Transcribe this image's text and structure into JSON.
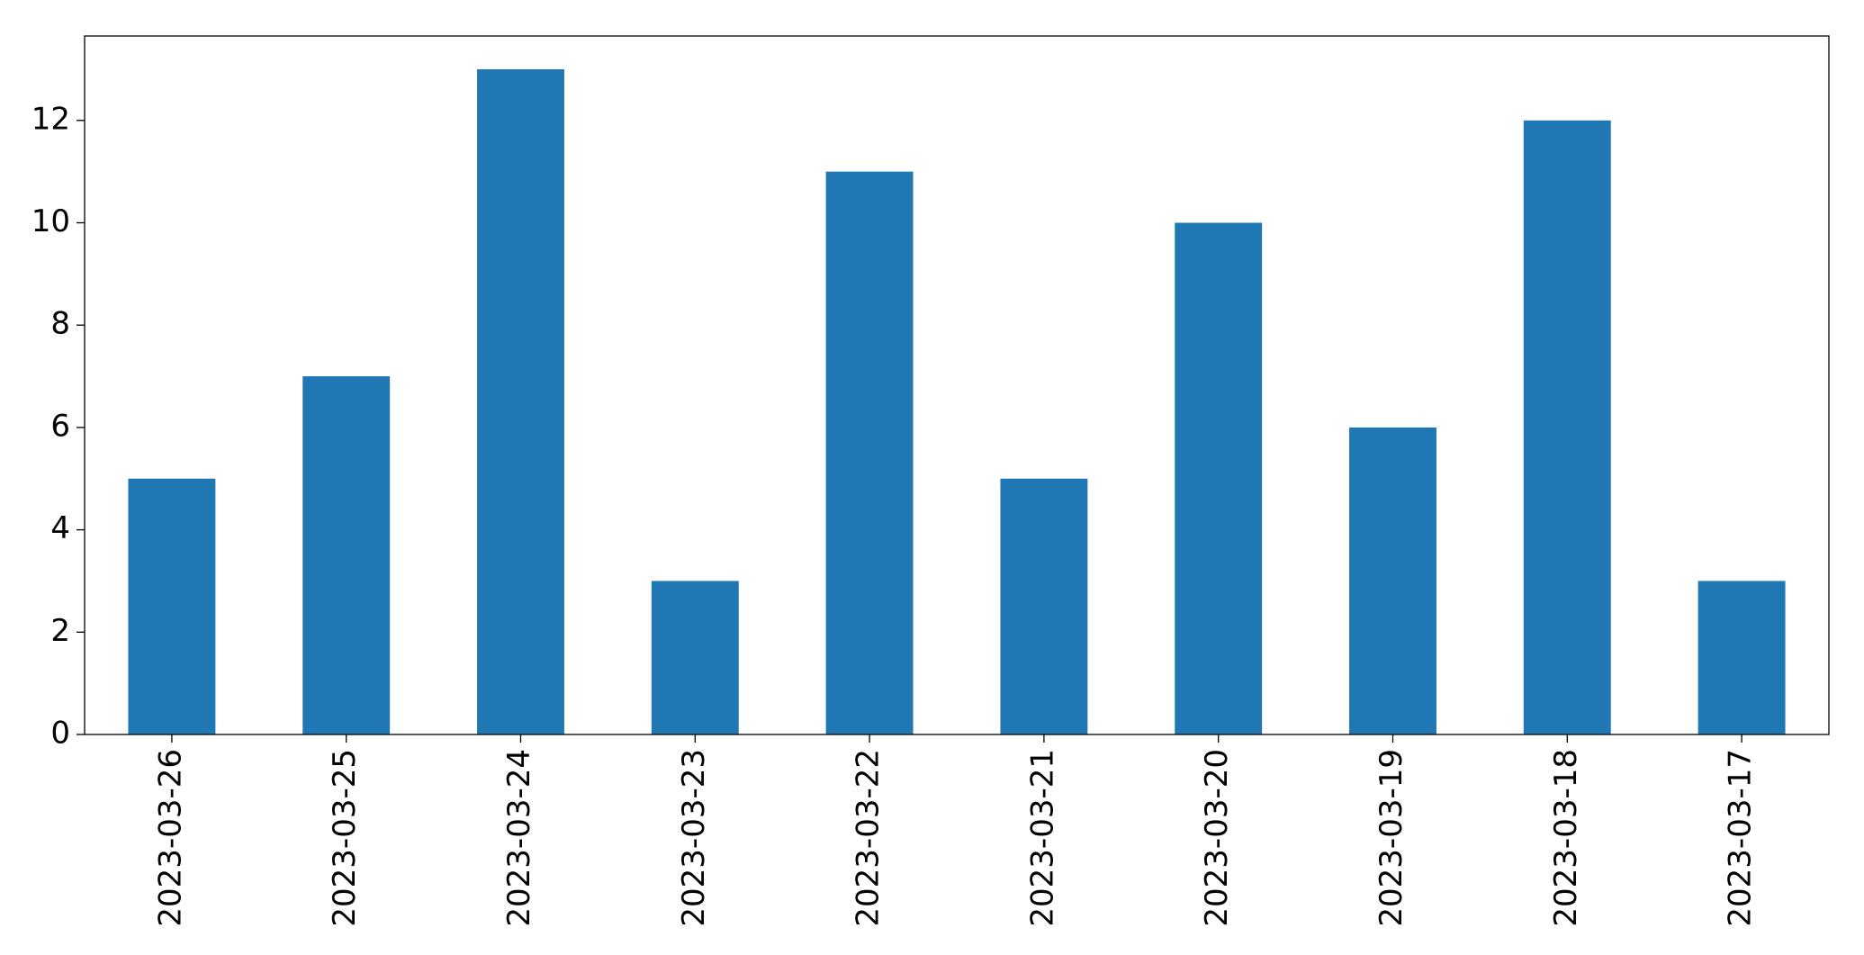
{
  "chart_data": {
    "type": "bar",
    "categories": [
      "2023-03-26",
      "2023-03-25",
      "2023-03-24",
      "2023-03-23",
      "2023-03-22",
      "2023-03-21",
      "2023-03-20",
      "2023-03-19",
      "2023-03-18",
      "2023-03-17"
    ],
    "values": [
      5,
      7,
      13,
      3,
      11,
      5,
      10,
      6,
      12,
      3
    ],
    "color": "#1f77b4",
    "ylim": [
      0,
      13.65
    ],
    "yticks": [
      0,
      2,
      4,
      6,
      8,
      10,
      12
    ],
    "grid": false
  }
}
